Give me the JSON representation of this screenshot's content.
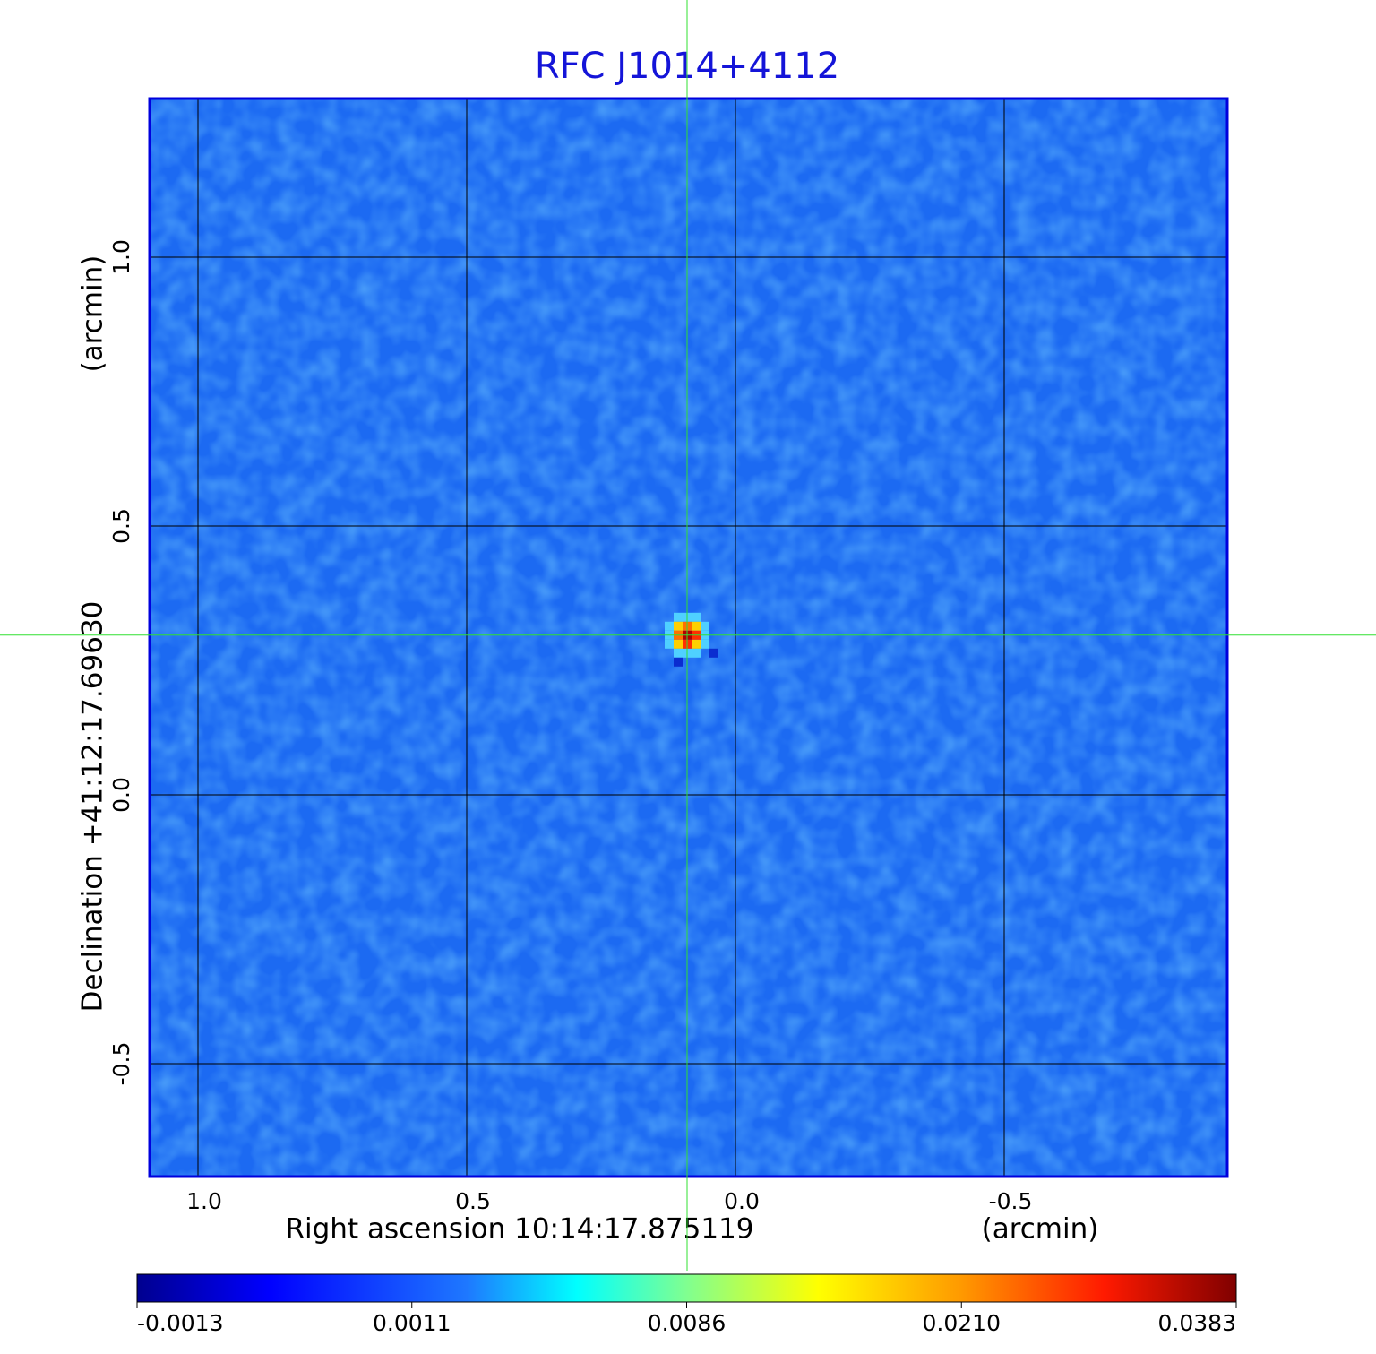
{
  "chart_data": {
    "type": "image",
    "title": "RFC J1014+4112",
    "xlabel": "Right ascension  10:14:17.875119",
    "xunit": "(arcmin)",
    "ylabel": "Declination  +41:12:17.69630",
    "yunit": "(arcmin)",
    "xlim": [
      1.09,
      -0.915
    ],
    "ylim": [
      -0.71,
      1.295
    ],
    "xticks": [
      {
        "value": 1.0,
        "label": "1.0"
      },
      {
        "value": 0.5,
        "label": "0.5"
      },
      {
        "value": 0,
        "label": "0.0"
      },
      {
        "value": -0.5,
        "label": "-0.5"
      }
    ],
    "yticks": [
      {
        "value": -0.5,
        "label": "-0.5"
      },
      {
        "value": 0,
        "label": "0.0"
      },
      {
        "value": 0.5,
        "label": "0.5"
      },
      {
        "value": 1.0,
        "label": "1.0"
      }
    ],
    "grid": true,
    "crosshair": {
      "x": 0.09,
      "y": 0.297
    },
    "colorbar_ticks": [
      -0.0013,
      0.0011,
      0.0086,
      {
        "value": 0.021,
        "label": "0.0210"
      },
      0.0383
    ]
  }
}
